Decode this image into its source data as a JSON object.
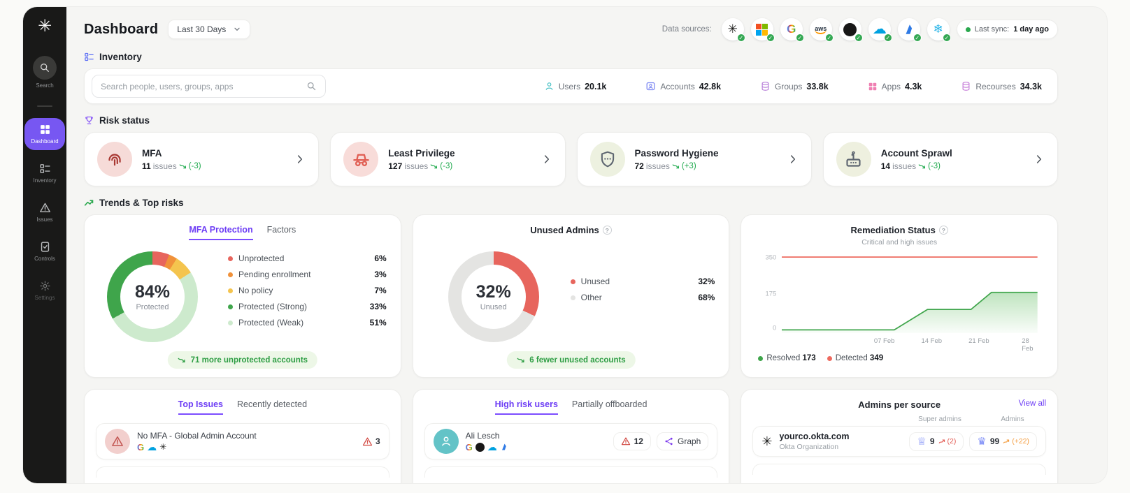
{
  "sidebar": {
    "items": [
      {
        "label": "Search"
      },
      {
        "label": "Dashboard",
        "active": true
      },
      {
        "label": "Inventory"
      },
      {
        "label": "Issues"
      },
      {
        "label": "Controls"
      },
      {
        "label": "Settings"
      }
    ]
  },
  "header": {
    "title": "Dashboard",
    "period_selector": "Last 30 Days",
    "data_sources_label": "Data sources:",
    "data_sources": [
      "okta",
      "microsoft",
      "google",
      "aws",
      "github",
      "salesforce",
      "azure",
      "snowflake"
    ],
    "last_sync_label": "Last sync:",
    "last_sync_value": "1 day ago"
  },
  "inventory": {
    "section_title": "Inventory",
    "search_placeholder": "Search people, users, groups, apps",
    "stats": [
      {
        "label": "Users",
        "value": "20.1k"
      },
      {
        "label": "Accounts",
        "value": "42.8k"
      },
      {
        "label": "Groups",
        "value": "33.8k"
      },
      {
        "label": "Apps",
        "value": "4.3k"
      },
      {
        "label": "Recourses",
        "value": "34.3k"
      }
    ]
  },
  "risk_status": {
    "section_title": "Risk status",
    "issues_label": "issues",
    "cards": [
      {
        "title": "MFA",
        "issues": "11",
        "trend": "(-3)"
      },
      {
        "title": "Least Privilege",
        "issues": "127",
        "trend": "(-3)"
      },
      {
        "title": "Password Hygiene",
        "issues": "72",
        "trend": "(+3)"
      },
      {
        "title": "Account Sprawl",
        "issues": "14",
        "trend": "(-3)"
      }
    ]
  },
  "trends": {
    "section_title": "Trends & Top risks",
    "mfa_card": {
      "tabs": [
        "MFA Protection",
        "Factors"
      ],
      "center_value": "84%",
      "center_label": "Protected",
      "legend": [
        {
          "label": "Unprotected",
          "value": "6%",
          "color": "#e7655d"
        },
        {
          "label": "Pending enrollment",
          "value": "3%",
          "color": "#f0913a"
        },
        {
          "label": "No policy",
          "value": "7%",
          "color": "#f4c44e"
        },
        {
          "label": "Protected (Strong)",
          "value": "33%",
          "color": "#3fa54b"
        },
        {
          "label": "Protected (Weak)",
          "value": "51%",
          "color": "#cdeacd"
        }
      ],
      "footer_badge": "71 more unprotected accounts"
    },
    "unused_admins_card": {
      "title": "Unused Admins",
      "center_value": "32%",
      "center_label": "Unused",
      "legend": [
        {
          "label": "Unused",
          "value": "32%",
          "color": "#e7655d"
        },
        {
          "label": "Other",
          "value": "68%",
          "color": "#e4e4e2"
        }
      ],
      "footer_badge": "6 fewer unused accounts"
    },
    "remediation_card": {
      "title": "Remediation Status",
      "subtitle": "Critical and high issues",
      "y_ticks": [
        "350",
        "175",
        "0"
      ],
      "x_ticks": [
        "07 Feb",
        "14 Feb",
        "21 Feb",
        "28 Feb"
      ],
      "legend": [
        {
          "label": "Resolved",
          "value": "173",
          "color": "#3fa54b"
        },
        {
          "label": "Detected",
          "value": "349",
          "color": "#ee6a5f"
        }
      ]
    }
  },
  "bottom": {
    "top_issues_card": {
      "tabs": [
        "Top Issues",
        "Recently detected"
      ],
      "rows": [
        {
          "title": "No MFA - Global Admin Account",
          "sources": [
            "google",
            "salesforce",
            "okta"
          ],
          "count": "3"
        }
      ]
    },
    "high_risk_card": {
      "tabs": [
        "High risk users",
        "Partially offboarded"
      ],
      "rows": [
        {
          "name": "Ali Lesch",
          "sources": [
            "google",
            "github",
            "salesforce",
            "azure"
          ],
          "count": "12",
          "graph_label": "Graph"
        }
      ]
    },
    "admins_card": {
      "title": "Admins per source",
      "view_all": "View all",
      "col1": "Super admins",
      "col2": "Admins",
      "rows": [
        {
          "name": "yourco.okta.com",
          "org": "Okta Organization",
          "super_admins": "9",
          "super_trend": "(2)",
          "admins": "99",
          "admins_trend": "(+22)"
        }
      ]
    }
  },
  "chart_data": [
    {
      "id": "mfa_protection",
      "type": "pie",
      "title": "MFA Protection",
      "labels": [
        "Unprotected",
        "Pending enrollment",
        "No policy",
        "Protected (Strong)",
        "Protected (Weak)"
      ],
      "values": [
        6,
        3,
        7,
        33,
        51
      ],
      "colors": [
        "#e7655d",
        "#f0913a",
        "#f4c44e",
        "#3fa54b",
        "#cdeacd"
      ],
      "segment_order": [
        0,
        1,
        2,
        4,
        3
      ],
      "center": "84% Protected"
    },
    {
      "id": "unused_admins",
      "type": "pie",
      "title": "Unused Admins",
      "labels": [
        "Unused",
        "Other"
      ],
      "values": [
        32,
        68
      ],
      "colors": [
        "#e7655d",
        "#e4e4e2"
      ],
      "segment_order": [
        0,
        1
      ],
      "center": "32% Unused"
    },
    {
      "id": "remediation",
      "type": "line",
      "title": "Remediation Status",
      "subtitle": "Critical and high issues",
      "x_ticks": [
        "07 Feb",
        "14 Feb",
        "21 Feb",
        "28 Feb"
      ],
      "ylim": [
        -30,
        360
      ],
      "series": [
        {
          "name": "Detected",
          "color": "#ee6a5f",
          "points": [
            [
              0,
              349
            ],
            [
              100,
              349
            ]
          ]
        },
        {
          "name": "Resolved",
          "color": "#3fa54b",
          "fill": true,
          "points": [
            [
              0,
              -14
            ],
            [
              44,
              -14
            ],
            [
              57,
              88
            ],
            [
              74,
              88
            ],
            [
              82,
              173
            ],
            [
              100,
              173
            ]
          ]
        }
      ]
    }
  ]
}
